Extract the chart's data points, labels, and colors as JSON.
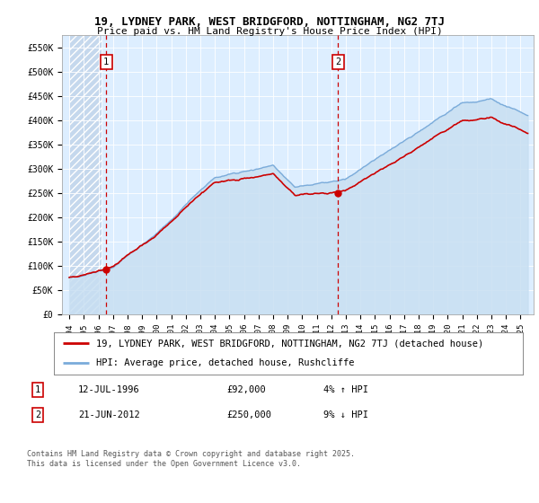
{
  "title": "19, LYDNEY PARK, WEST BRIDGFORD, NOTTINGHAM, NG2 7TJ",
  "subtitle": "Price paid vs. HM Land Registry's House Price Index (HPI)",
  "ylim": [
    0,
    575000
  ],
  "yticks": [
    0,
    50000,
    100000,
    150000,
    200000,
    250000,
    300000,
    350000,
    400000,
    450000,
    500000,
    550000
  ],
  "ytick_labels": [
    "£0",
    "£50K",
    "£100K",
    "£150K",
    "£200K",
    "£250K",
    "£300K",
    "£350K",
    "£400K",
    "£450K",
    "£500K",
    "£550K"
  ],
  "sale1_date": 1996.54,
  "sale1_price": 92000,
  "sale1_label": "1",
  "sale2_date": 2012.47,
  "sale2_price": 250000,
  "sale2_label": "2",
  "legend_line1": "19, LYDNEY PARK, WEST BRIDGFORD, NOTTINGHAM, NG2 7TJ (detached house)",
  "legend_line2": "HPI: Average price, detached house, Rushcliffe",
  "annotation1_date": "12-JUL-1996",
  "annotation1_price": "£92,000",
  "annotation1_rel": "4% ↑ HPI",
  "annotation2_date": "21-JUN-2012",
  "annotation2_price": "£250,000",
  "annotation2_rel": "9% ↓ HPI",
  "footer": "Contains HM Land Registry data © Crown copyright and database right 2025.\nThis data is licensed under the Open Government Licence v3.0.",
  "line_color_price": "#cc0000",
  "line_color_hpi": "#7aabda",
  "fill_color_hpi": "#c8dff2",
  "plot_bg_color": "#ddeeff",
  "hatch_bg_color": "#c5d8ed"
}
